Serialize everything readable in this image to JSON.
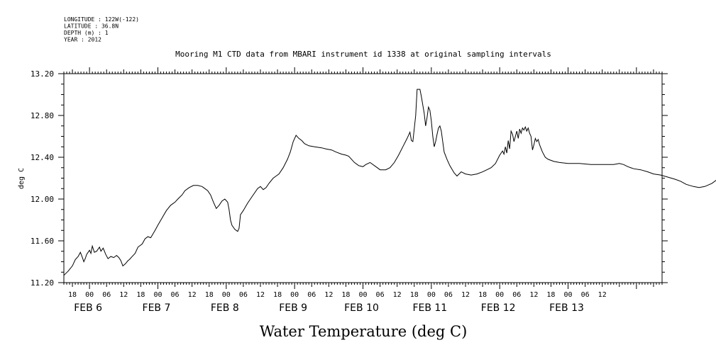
{
  "header": {
    "longitude": "LONGITUDE : 122W(-122)",
    "latitude": "LATITUDE : 36.8N",
    "depth": "DEPTH (m) : 1",
    "year": "YEAR : 2012"
  },
  "chart_data": {
    "type": "line",
    "title": "Mooring M1 CTD data from MBARI instrument id 1338 at original sampling intervals",
    "xlabel": "Water Temperature (deg C)",
    "ylabel": "deg C",
    "ylim": [
      11.2,
      13.2
    ],
    "xlim_hours": [
      -9,
      201
    ],
    "x_reference": "hours since 2012-02-06 00:00",
    "yticks": [
      "11.20",
      "11.60",
      "12.00",
      "12.40",
      "12.80",
      "13.20"
    ],
    "x_hour_labels": [
      "18",
      "00",
      "06",
      "12",
      "18",
      "00",
      "06",
      "12",
      "18",
      "00",
      "06",
      "12",
      "18",
      "00",
      "06",
      "12",
      "18",
      "00",
      "06",
      "12",
      "18",
      "00",
      "06",
      "12",
      "18",
      "00",
      "06",
      "12",
      "18",
      "00",
      "06",
      "12"
    ],
    "x_day_labels": [
      "FEB  6",
      "FEB  7",
      "FEB  8",
      "FEB  9",
      "FEB 10",
      "FEB 11",
      "FEB 12",
      "FEB 13"
    ],
    "grid": false,
    "series": [
      {
        "color": "#000000",
        "points": [
          [
            -9,
            11.27
          ],
          [
            -7.5,
            11.31
          ],
          [
            -6,
            11.36
          ],
          [
            -5,
            11.42
          ],
          [
            -4,
            11.45
          ],
          [
            -3.2,
            11.49
          ],
          [
            -2.5,
            11.44
          ],
          [
            -2,
            11.4
          ],
          [
            -1.5,
            11.43
          ],
          [
            -1,
            11.47
          ],
          [
            0,
            11.51
          ],
          [
            0.5,
            11.48
          ],
          [
            1,
            11.55
          ],
          [
            1.7,
            11.49
          ],
          [
            2.5,
            11.5
          ],
          [
            3.5,
            11.54
          ],
          [
            4,
            11.5
          ],
          [
            4.8,
            11.53
          ],
          [
            5.7,
            11.47
          ],
          [
            6.5,
            11.43
          ],
          [
            7.5,
            11.45
          ],
          [
            8.5,
            11.44
          ],
          [
            9.5,
            11.46
          ],
          [
            10.3,
            11.44
          ],
          [
            11,
            11.41
          ],
          [
            11.7,
            11.36
          ],
          [
            12.6,
            11.38
          ],
          [
            13.5,
            11.41
          ],
          [
            14,
            11.42
          ],
          [
            15,
            11.45
          ],
          [
            16,
            11.48
          ],
          [
            17,
            11.54
          ],
          [
            18.5,
            11.57
          ],
          [
            19.5,
            11.62
          ],
          [
            20.5,
            11.64
          ],
          [
            21.5,
            11.63
          ],
          [
            23,
            11.7
          ],
          [
            24,
            11.75
          ],
          [
            25.5,
            11.82
          ],
          [
            27,
            11.89
          ],
          [
            28.5,
            11.94
          ],
          [
            30,
            11.97
          ],
          [
            31,
            12.0
          ],
          [
            32.5,
            12.04
          ],
          [
            33.5,
            12.08
          ],
          [
            35,
            12.11
          ],
          [
            36.5,
            12.13
          ],
          [
            38,
            12.13
          ],
          [
            39.5,
            12.12
          ],
          [
            40.5,
            12.1
          ],
          [
            41.5,
            12.08
          ],
          [
            42.5,
            12.04
          ],
          [
            43.5,
            11.97
          ],
          [
            44.5,
            11.91
          ],
          [
            45.5,
            11.94
          ],
          [
            46.5,
            11.98
          ],
          [
            47.5,
            12.0
          ],
          [
            48.5,
            11.97
          ],
          [
            49,
            11.9
          ],
          [
            49.5,
            11.8
          ],
          [
            50,
            11.75
          ],
          [
            51,
            11.71
          ],
          [
            52,
            11.69
          ],
          [
            52.5,
            11.72
          ],
          [
            53,
            11.85
          ],
          [
            54,
            11.89
          ],
          [
            55.5,
            11.96
          ],
          [
            57,
            12.02
          ],
          [
            59,
            12.1
          ],
          [
            60,
            12.12
          ],
          [
            61,
            12.09
          ],
          [
            62,
            12.11
          ],
          [
            63,
            12.15
          ],
          [
            64.5,
            12.2
          ],
          [
            65.5,
            12.22
          ],
          [
            66.5,
            12.24
          ],
          [
            68,
            12.3
          ],
          [
            69.5,
            12.38
          ],
          [
            70.5,
            12.45
          ],
          [
            71.5,
            12.55
          ],
          [
            72.5,
            12.61
          ],
          [
            73.5,
            12.58
          ],
          [
            74.5,
            12.56
          ],
          [
            75.5,
            12.53
          ],
          [
            77,
            12.51
          ],
          [
            79,
            12.5
          ],
          [
            81.5,
            12.49
          ],
          [
            83,
            12.48
          ],
          [
            85,
            12.47
          ],
          [
            86.5,
            12.45
          ],
          [
            88.5,
            12.43
          ],
          [
            90,
            12.42
          ],
          [
            91,
            12.41
          ],
          [
            92,
            12.38
          ],
          [
            93,
            12.35
          ],
          [
            94.5,
            12.32
          ],
          [
            96,
            12.31
          ],
          [
            97,
            12.33
          ],
          [
            98.5,
            12.35
          ],
          [
            100,
            12.32
          ],
          [
            101,
            12.3
          ],
          [
            102,
            12.28
          ],
          [
            104,
            12.28
          ],
          [
            105.5,
            12.3
          ],
          [
            107,
            12.35
          ],
          [
            108.5,
            12.42
          ],
          [
            110,
            12.5
          ],
          [
            111.5,
            12.58
          ],
          [
            112.5,
            12.64
          ],
          [
            113,
            12.56
          ],
          [
            113.5,
            12.55
          ],
          [
            114.5,
            12.8
          ],
          [
            115,
            13.05
          ],
          [
            116,
            13.05
          ],
          [
            116.5,
            12.98
          ],
          [
            117,
            12.9
          ],
          [
            117.5,
            12.82
          ],
          [
            118,
            12.7
          ],
          [
            118.5,
            12.78
          ],
          [
            119,
            12.88
          ],
          [
            119.5,
            12.85
          ],
          [
            120,
            12.75
          ],
          [
            120.5,
            12.6
          ],
          [
            121,
            12.5
          ],
          [
            121.5,
            12.55
          ],
          [
            122,
            12.62
          ],
          [
            122.5,
            12.68
          ],
          [
            123,
            12.7
          ],
          [
            123.5,
            12.65
          ],
          [
            124,
            12.55
          ],
          [
            124.5,
            12.45
          ],
          [
            125.5,
            12.38
          ],
          [
            126.5,
            12.32
          ],
          [
            128,
            12.25
          ],
          [
            129,
            12.22
          ],
          [
            130.5,
            12.26
          ],
          [
            132,
            12.24
          ],
          [
            134,
            12.23
          ],
          [
            136,
            12.24
          ],
          [
            138,
            12.26
          ],
          [
            139.5,
            12.28
          ],
          [
            141,
            12.3
          ],
          [
            142.5,
            12.34
          ],
          [
            144,
            12.42
          ],
          [
            145,
            12.46
          ],
          [
            145.5,
            12.43
          ],
          [
            146,
            12.5
          ],
          [
            146.5,
            12.44
          ],
          [
            147,
            12.56
          ],
          [
            147.5,
            12.48
          ],
          [
            148,
            12.65
          ],
          [
            148.5,
            12.62
          ],
          [
            149,
            12.55
          ],
          [
            149.5,
            12.6
          ],
          [
            150,
            12.65
          ],
          [
            150.5,
            12.58
          ],
          [
            151,
            12.67
          ],
          [
            151.5,
            12.63
          ],
          [
            152,
            12.68
          ],
          [
            152.5,
            12.66
          ],
          [
            153,
            12.69
          ],
          [
            153.5,
            12.65
          ],
          [
            154,
            12.68
          ],
          [
            154.5,
            12.63
          ],
          [
            155,
            12.6
          ],
          [
            155.5,
            12.47
          ],
          [
            156,
            12.52
          ],
          [
            156.5,
            12.58
          ],
          [
            157,
            12.55
          ],
          [
            157.5,
            12.57
          ],
          [
            158,
            12.52
          ],
          [
            159,
            12.45
          ],
          [
            160,
            12.4
          ],
          [
            161,
            12.38
          ],
          [
            163,
            12.36
          ],
          [
            165,
            12.35
          ],
          [
            168,
            12.34
          ],
          [
            172,
            12.34
          ],
          [
            176,
            12.33
          ],
          [
            180,
            12.33
          ],
          [
            184,
            12.33
          ],
          [
            186,
            12.34
          ],
          [
            187.5,
            12.33
          ],
          [
            189,
            12.31
          ],
          [
            191,
            12.29
          ],
          [
            193.5,
            12.28
          ],
          [
            196,
            12.26
          ],
          [
            198,
            12.24
          ],
          [
            200.5,
            12.23
          ],
          [
            203,
            12.21
          ],
          [
            205.5,
            12.19
          ],
          [
            207.5,
            12.17
          ],
          [
            209.5,
            12.14
          ],
          [
            212,
            12.12
          ],
          [
            214,
            12.11
          ],
          [
            216,
            12.12
          ],
          [
            218.5,
            12.15
          ],
          [
            221,
            12.2
          ],
          [
            222.5,
            12.27
          ],
          [
            223.5,
            12.33
          ],
          [
            224.5,
            12.28
          ],
          [
            225.5,
            12.21
          ],
          [
            226.5,
            12.19
          ],
          [
            227.5,
            12.17
          ],
          [
            228.5,
            12.15
          ],
          [
            229.5,
            12.17
          ],
          [
            230.5,
            12.2
          ],
          [
            231.5,
            12.17
          ],
          [
            233,
            12.16
          ],
          [
            235,
            12.16
          ],
          [
            237.5,
            12.15
          ],
          [
            240,
            12.13
          ],
          [
            242,
            12.11
          ],
          [
            243.5,
            12.08
          ],
          [
            245,
            12.05
          ],
          [
            246.5,
            12.03
          ],
          [
            248,
            12.02
          ],
          [
            250,
            12.02
          ],
          [
            251,
            12.03
          ]
        ]
      }
    ]
  }
}
